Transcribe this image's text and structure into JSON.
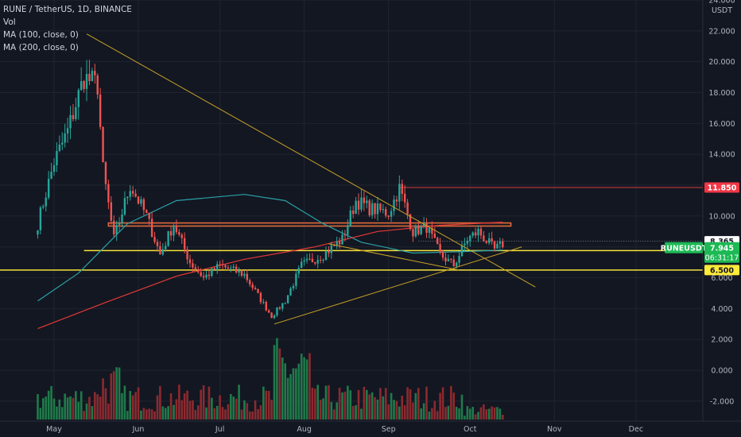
{
  "legend": {
    "symbol_line": "RUNE / TetherUS, 1D, BINANCE",
    "vol_label": "Vol",
    "ma100_label": "MA (100, close, 0)",
    "ma200_label": "MA (200, close, 0)"
  },
  "colors": {
    "background": "#131722",
    "grid": "#1f2430",
    "candle_up": "#26a69a",
    "candle_down": "#ef5350",
    "vol_up": "#1f7a4a",
    "vol_down": "#8b2a2f",
    "ma100": "#2aa1a8",
    "ma200": "#e53935",
    "trendline": "#c9a227",
    "support_line": "#f5e33a",
    "resistance_zone": "#e06a3a",
    "level_red": "#d43c3c",
    "price_tag": "#1db954",
    "level_tag_bg": "#ffeb3b",
    "level_tag_red_bg": "#f23645",
    "level_tag_white_bg": "#ffffff",
    "axis_text": "#b2b5be"
  },
  "y_axis": {
    "currency": "USDT",
    "ticks": [
      "24.000",
      "22.000",
      "20.000",
      "18.000",
      "16.000",
      "14.000",
      "12.000",
      "10.000",
      "8.000",
      "6.000",
      "4.000",
      "2.000",
      "0.000",
      "-2.000"
    ]
  },
  "x_axis": {
    "ticks": [
      "May",
      "Jun",
      "Jul",
      "Aug",
      "Sep",
      "Oct",
      "Nov",
      "Dec"
    ]
  },
  "price_tags": {
    "resistance_label": "11.850",
    "last_close_label": "8.365",
    "symbol": "RUNEUSDT",
    "current_price": "7.945",
    "countdown": "06:31:17",
    "support_upper": "7.759",
    "support_lower": "6.500"
  },
  "chart_data": {
    "type": "candlestick",
    "symbol": "RUNE / TetherUS",
    "exchange": "BINANCE",
    "interval": "1D",
    "ylim": [
      -2.8,
      24.2
    ],
    "levels": {
      "resistance": 11.85,
      "zone_low": 9.35,
      "zone_high": 9.55,
      "support_upper": 7.759,
      "support_lower": 6.5,
      "last_close": 8.365,
      "current": 7.945
    },
    "anchors": [
      {
        "date": "2021-04-25",
        "close": 9.5
      },
      {
        "date": "2021-05-01",
        "close": 13.5
      },
      {
        "date": "2021-05-06",
        "close": 15.5
      },
      {
        "date": "2021-05-12",
        "close": 19.0
      },
      {
        "date": "2021-05-17",
        "close": 18.5
      },
      {
        "date": "2021-05-19",
        "close": 13.0
      },
      {
        "date": "2021-05-23",
        "close": 8.5
      },
      {
        "date": "2021-05-29",
        "close": 12.0
      },
      {
        "date": "2021-06-04",
        "close": 10.0
      },
      {
        "date": "2021-06-09",
        "close": 7.5
      },
      {
        "date": "2021-06-14",
        "close": 9.5
      },
      {
        "date": "2021-06-20",
        "close": 7.0
      },
      {
        "date": "2021-06-25",
        "close": 6.0
      },
      {
        "date": "2021-07-01",
        "close": 6.8
      },
      {
        "date": "2021-07-10",
        "close": 6.2
      },
      {
        "date": "2021-07-20",
        "close": 3.5
      },
      {
        "date": "2021-07-25",
        "close": 4.5
      },
      {
        "date": "2021-07-31",
        "close": 6.8
      },
      {
        "date": "2021-08-08",
        "close": 7.5
      },
      {
        "date": "2021-08-15",
        "close": 8.5
      },
      {
        "date": "2021-08-20",
        "close": 11.0
      },
      {
        "date": "2021-08-25",
        "close": 10.5
      },
      {
        "date": "2021-09-01",
        "close": 10.2
      },
      {
        "date": "2021-09-05",
        "close": 11.8
      },
      {
        "date": "2021-09-10",
        "close": 9.0
      },
      {
        "date": "2021-09-15",
        "close": 9.3
      },
      {
        "date": "2021-09-20",
        "close": 7.5
      },
      {
        "date": "2021-09-25",
        "close": 6.8
      },
      {
        "date": "2021-09-30",
        "close": 8.5
      },
      {
        "date": "2021-10-04",
        "close": 9.0
      },
      {
        "date": "2021-10-10",
        "close": 7.8
      },
      {
        "date": "2021-10-13",
        "close": 8.2
      }
    ],
    "ma100": [
      {
        "date": "2021-04-25",
        "value": 4.5
      },
      {
        "date": "2021-05-10",
        "value": 6.3
      },
      {
        "date": "2021-05-28",
        "value": 9.5
      },
      {
        "date": "2021-06-15",
        "value": 11.0
      },
      {
        "date": "2021-07-10",
        "value": 11.4
      },
      {
        "date": "2021-07-25",
        "value": 11.0
      },
      {
        "date": "2021-08-08",
        "value": 9.5
      },
      {
        "date": "2021-08-22",
        "value": 8.3
      },
      {
        "date": "2021-09-10",
        "value": 7.6
      },
      {
        "date": "2021-09-30",
        "value": 7.7
      },
      {
        "date": "2021-10-13",
        "value": 7.8
      }
    ],
    "ma200": [
      {
        "date": "2021-04-25",
        "value": 2.7
      },
      {
        "date": "2021-05-20",
        "value": 4.4
      },
      {
        "date": "2021-06-15",
        "value": 6.1
      },
      {
        "date": "2021-07-10",
        "value": 7.2
      },
      {
        "date": "2021-08-05",
        "value": 8.0
      },
      {
        "date": "2021-08-28",
        "value": 9.0
      },
      {
        "date": "2021-09-20",
        "value": 9.4
      },
      {
        "date": "2021-10-13",
        "value": 9.6
      }
    ],
    "trendlines": [
      {
        "from": {
          "date": "2021-05-13",
          "value": 21.8
        },
        "to": {
          "date": "2021-10-25",
          "value": 5.4
        }
      },
      {
        "from": {
          "date": "2021-07-21",
          "value": 3.0
        },
        "to": {
          "date": "2021-10-20",
          "value": 8.0
        }
      },
      {
        "from": {
          "date": "2021-08-10",
          "value": 8.2
        },
        "to": {
          "date": "2021-09-27",
          "value": 6.5
        }
      }
    ]
  }
}
